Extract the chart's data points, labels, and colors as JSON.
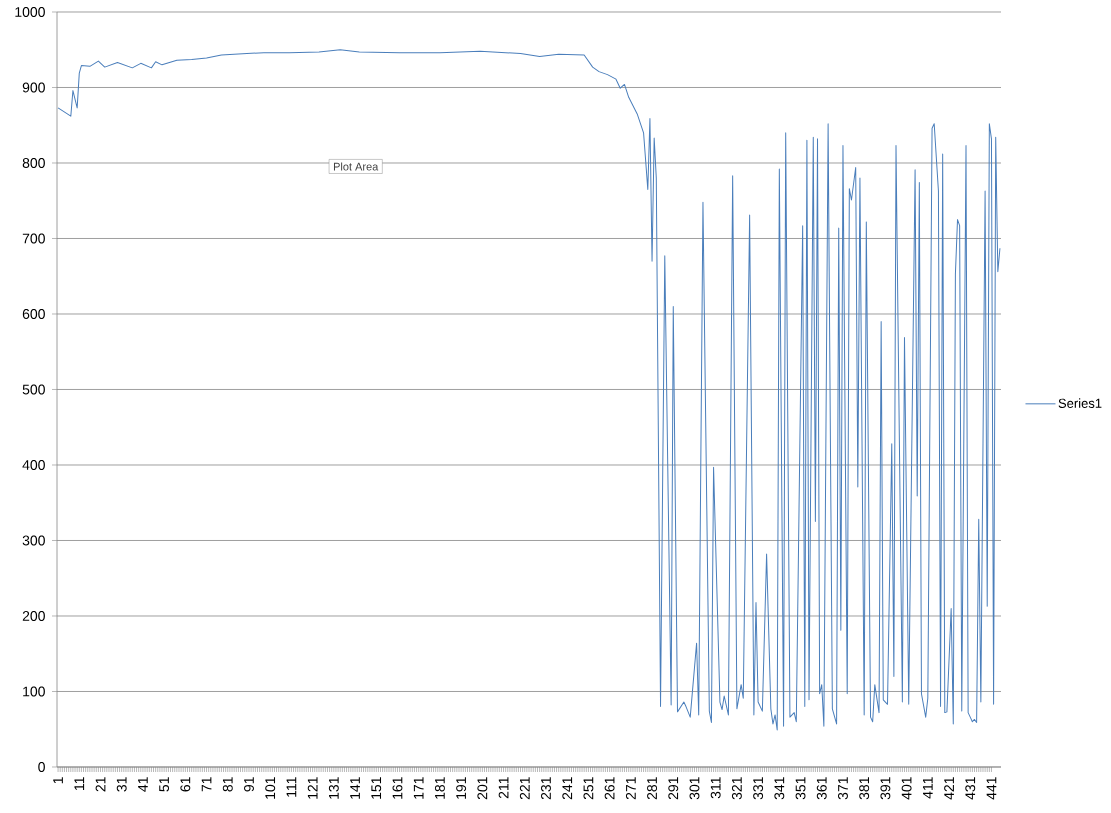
{
  "chart_data": {
    "type": "line",
    "x": [
      1,
      7,
      8,
      10,
      11,
      12,
      16,
      20,
      23,
      29,
      36,
      40,
      45,
      47,
      50,
      57,
      64,
      71,
      78,
      90,
      98,
      110,
      124,
      134,
      143,
      162,
      181,
      200,
      219,
      228,
      237,
      249,
      253,
      256,
      260,
      264,
      266,
      268,
      270,
      274,
      277,
      279,
      280,
      281,
      282,
      283,
      285,
      287,
      290,
      291,
      293,
      296,
      297,
      299,
      302,
      303,
      305,
      308,
      309,
      310,
      313,
      314,
      315,
      317,
      319,
      321,
      323,
      324,
      327,
      329,
      330,
      331,
      333,
      335,
      337,
      338,
      339,
      340,
      341,
      343,
      344,
      346,
      348,
      349,
      352,
      353,
      354,
      355,
      357,
      358,
      359,
      360,
      361,
      362,
      364,
      366,
      368,
      369,
      370,
      371,
      373,
      374,
      375,
      377,
      378,
      379,
      381,
      382,
      384,
      385,
      386,
      388,
      389,
      390,
      392,
      394,
      395,
      396,
      399,
      400,
      402,
      405,
      406,
      407,
      408,
      410,
      411,
      413,
      414,
      416,
      417,
      418,
      419,
      420,
      422,
      423,
      424,
      425,
      426,
      427,
      429,
      430,
      431,
      432,
      433,
      434,
      435,
      436,
      438,
      439,
      440,
      441,
      442,
      443,
      444,
      445
    ],
    "series": [
      {
        "name": "Series1",
        "color": "#4a7ebb",
        "values": [
          873,
          862,
          896,
          873,
          919,
          929,
          928,
          935,
          927,
          933,
          926,
          932,
          926,
          934,
          930,
          936,
          937,
          939,
          943,
          945,
          946,
          946,
          947,
          950,
          947,
          946,
          946,
          948,
          945,
          941,
          944,
          943,
          927,
          921,
          917,
          911,
          899,
          904,
          887,
          865,
          840,
          765,
          859,
          670,
          833,
          780,
          80,
          677,
          82,
          610,
          73,
          86,
          80,
          66,
          164,
          69,
          748,
          74,
          59,
          397,
          86,
          76,
          94,
          69,
          783,
          77,
          109,
          91,
          731,
          69,
          218,
          86,
          74,
          282,
          77,
          57,
          69,
          49,
          792,
          54,
          840,
          66,
          72,
          60,
          717,
          80,
          830,
          89,
          834,
          325,
          832,
          97,
          109,
          54,
          852,
          77,
          57,
          714,
          181,
          823,
          97,
          766,
          751,
          794,
          371,
          780,
          69,
          722,
          66,
          60,
          109,
          72,
          590,
          89,
          83,
          428,
          120,
          823,
          86,
          569,
          83,
          791,
          359,
          774,
          97,
          66,
          91,
          846,
          852,
          763,
          80,
          812,
          72,
          73,
          210,
          57,
          653,
          725,
          717,
          74,
          823,
          72,
          66,
          60,
          63,
          59,
          328,
          86,
          763,
          213,
          852,
          832,
          83,
          834,
          656,
          687
        ]
      }
    ],
    "xlim": [
      0.5,
      445.5
    ],
    "xticks": [
      1,
      11,
      21,
      31,
      41,
      51,
      61,
      71,
      81,
      91,
      101,
      111,
      121,
      131,
      141,
      151,
      161,
      171,
      181,
      191,
      201,
      211,
      221,
      231,
      241,
      251,
      261,
      271,
      281,
      291,
      301,
      311,
      321,
      331,
      341,
      351,
      361,
      371,
      381,
      391,
      401,
      411,
      421,
      431,
      441
    ],
    "ylim": [
      0,
      1000
    ],
    "yticks": [
      0,
      100,
      200,
      300,
      400,
      500,
      600,
      700,
      800,
      900,
      1000
    ],
    "grid": "y",
    "legend": "right",
    "line_style": "solid",
    "annotations": [
      "Plot Area"
    ]
  }
}
